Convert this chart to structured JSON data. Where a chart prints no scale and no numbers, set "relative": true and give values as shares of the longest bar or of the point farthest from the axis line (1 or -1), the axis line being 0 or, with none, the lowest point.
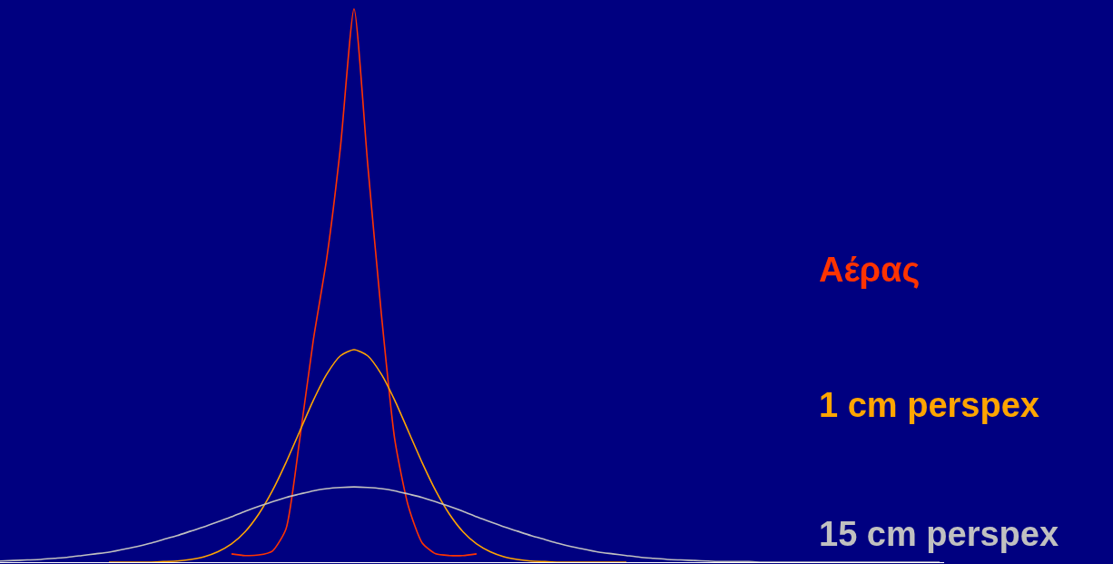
{
  "chart_data": {
    "type": "line",
    "relative": true,
    "marker": "none",
    "line_style": "solid",
    "grid": false,
    "legend": false,
    "categories": [
      null,
      null,
      null,
      null,
      null,
      null,
      null,
      null,
      null,
      null,
      null,
      null,
      null,
      null,
      null,
      null,
      null,
      null,
      null,
      null,
      null,
      null,
      null,
      null,
      null,
      null,
      null,
      null,
      null,
      null,
      null,
      null,
      null,
      null,
      null,
      null,
      null,
      null,
      null,
      null,
      null,
      null,
      null,
      null,
      null,
      null,
      null,
      null,
      null,
      null,
      null,
      null,
      null,
      null,
      null,
      null,
      null,
      null,
      null,
      null,
      null,
      null,
      null,
      null,
      null,
      null,
      null,
      null,
      null,
      null
    ],
    "series": [
      {
        "name": "Αέρας",
        "color": "#ff3300",
        "values": [
          null,
          null,
          null,
          null,
          null,
          null,
          null,
          null,
          null,
          null,
          null,
          null,
          null,
          null,
          null,
          null,
          null,
          0.015,
          0.012,
          0.013,
          0.02,
          0.06,
          0.22,
          0.4,
          0.55,
          0.75,
          1,
          0.72,
          0.45,
          0.22,
          0.1,
          0.035,
          0.015,
          0.012,
          0.012,
          0.015,
          null,
          null,
          null,
          null,
          null,
          null,
          null,
          null,
          null,
          null,
          null,
          null,
          null,
          null,
          null,
          null,
          null,
          null,
          null,
          null,
          null,
          null,
          null,
          null,
          null,
          null,
          null,
          null,
          null,
          null,
          null,
          null,
          null,
          null
        ]
      },
      {
        "name": "1 cm perspex",
        "color": "#ffa500",
        "values": [
          null,
          null,
          null,
          null,
          null,
          null,
          null,
          null,
          0,
          0,
          0,
          0,
          0.001,
          0.002,
          0.005,
          0.01,
          0.019,
          0.033,
          0.055,
          0.087,
          0.129,
          0.18,
          0.236,
          0.292,
          0.34,
          0.373,
          0.384,
          0.373,
          0.34,
          0.292,
          0.236,
          0.18,
          0.129,
          0.087,
          0.055,
          0.033,
          0.019,
          0.01,
          0.005,
          0.002,
          0.001,
          0,
          0,
          0,
          0,
          0,
          0,
          null,
          null,
          null,
          null,
          null,
          null,
          null,
          null,
          null,
          null,
          null,
          null,
          null,
          null,
          null,
          null,
          null,
          null,
          null,
          null,
          null,
          null,
          null
        ]
      },
      {
        "name": "15 cm perspex",
        "color": "#c0c0c0",
        "values": [
          0.002,
          0.003,
          0.004,
          0.005,
          0.007,
          0.009,
          0.012,
          0.015,
          0.018,
          0.023,
          0.028,
          0.034,
          0.041,
          0.048,
          0.056,
          0.064,
          0.073,
          0.082,
          0.092,
          0.101,
          0.109,
          0.117,
          0.123,
          0.129,
          0.133,
          0.135,
          0.136,
          0.135,
          0.133,
          0.129,
          0.123,
          0.117,
          0.109,
          0.101,
          0.092,
          0.082,
          0.073,
          0.064,
          0.056,
          0.048,
          0.041,
          0.034,
          0.028,
          0.023,
          0.018,
          0.015,
          0.012,
          0.009,
          0.007,
          0.005,
          0.004,
          0.003,
          0.002,
          0.001,
          0.001,
          0.001,
          0,
          0,
          0,
          0,
          0,
          0,
          0,
          0,
          0,
          0,
          0,
          0,
          0,
          0
        ]
      }
    ]
  }
}
